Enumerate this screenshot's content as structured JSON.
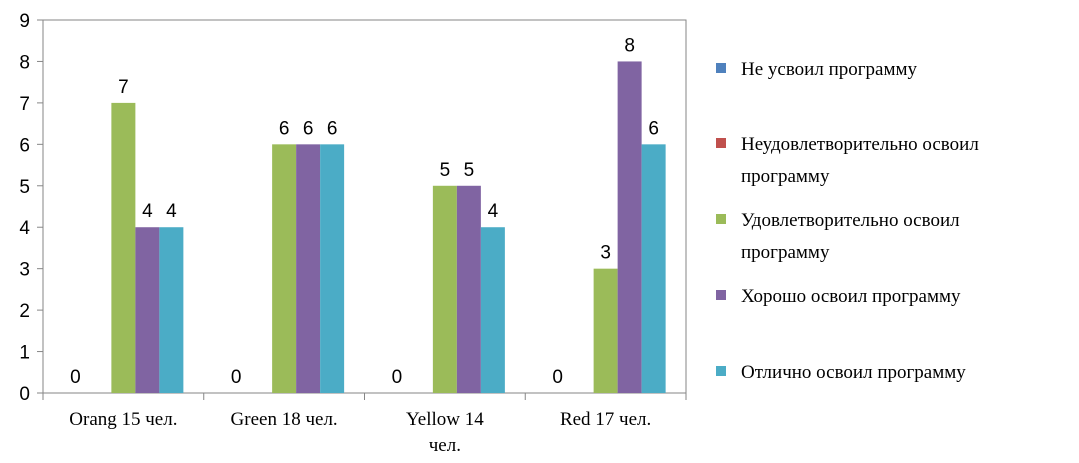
{
  "chart_data": {
    "type": "bar",
    "categories": [
      [
        "Orang 15 чел."
      ],
      [
        "Green 18 чел."
      ],
      [
        "Yellow 14",
        "чел."
      ],
      [
        "Red 17 чел."
      ]
    ],
    "series": [
      {
        "name": [
          "Не усвоил программу"
        ],
        "values": [
          0,
          0,
          0,
          0
        ],
        "color": "#4F81BD",
        "labeled": [
          true,
          true,
          true,
          true
        ]
      },
      {
        "name": [
          "Неудовлетворительно освоил",
          "программу"
        ],
        "values": [
          0,
          0,
          0,
          0
        ],
        "color": "#C0504D",
        "labeled": [
          false,
          false,
          false,
          false
        ]
      },
      {
        "name": [
          "Удовлетворительно освоил",
          "программу"
        ],
        "values": [
          7,
          6,
          5,
          3
        ],
        "color": "#9BBB59",
        "labeled": [
          true,
          true,
          true,
          true
        ]
      },
      {
        "name": [
          "Хорошо освоил программу"
        ],
        "values": [
          4,
          6,
          5,
          8
        ],
        "color": "#8064A2",
        "labeled": [
          true,
          true,
          true,
          true
        ]
      },
      {
        "name": [
          "Отлично освоил программу"
        ],
        "values": [
          4,
          6,
          4,
          6
        ],
        "color": "#4BACC6",
        "labeled": [
          true,
          true,
          true,
          true
        ]
      }
    ],
    "title": "",
    "xlabel": "",
    "ylabel": "",
    "ylim": [
      0,
      9
    ],
    "yticks": [
      0,
      1,
      2,
      3,
      4,
      5,
      6,
      7,
      8,
      9
    ],
    "grid": false,
    "legend": "right"
  }
}
